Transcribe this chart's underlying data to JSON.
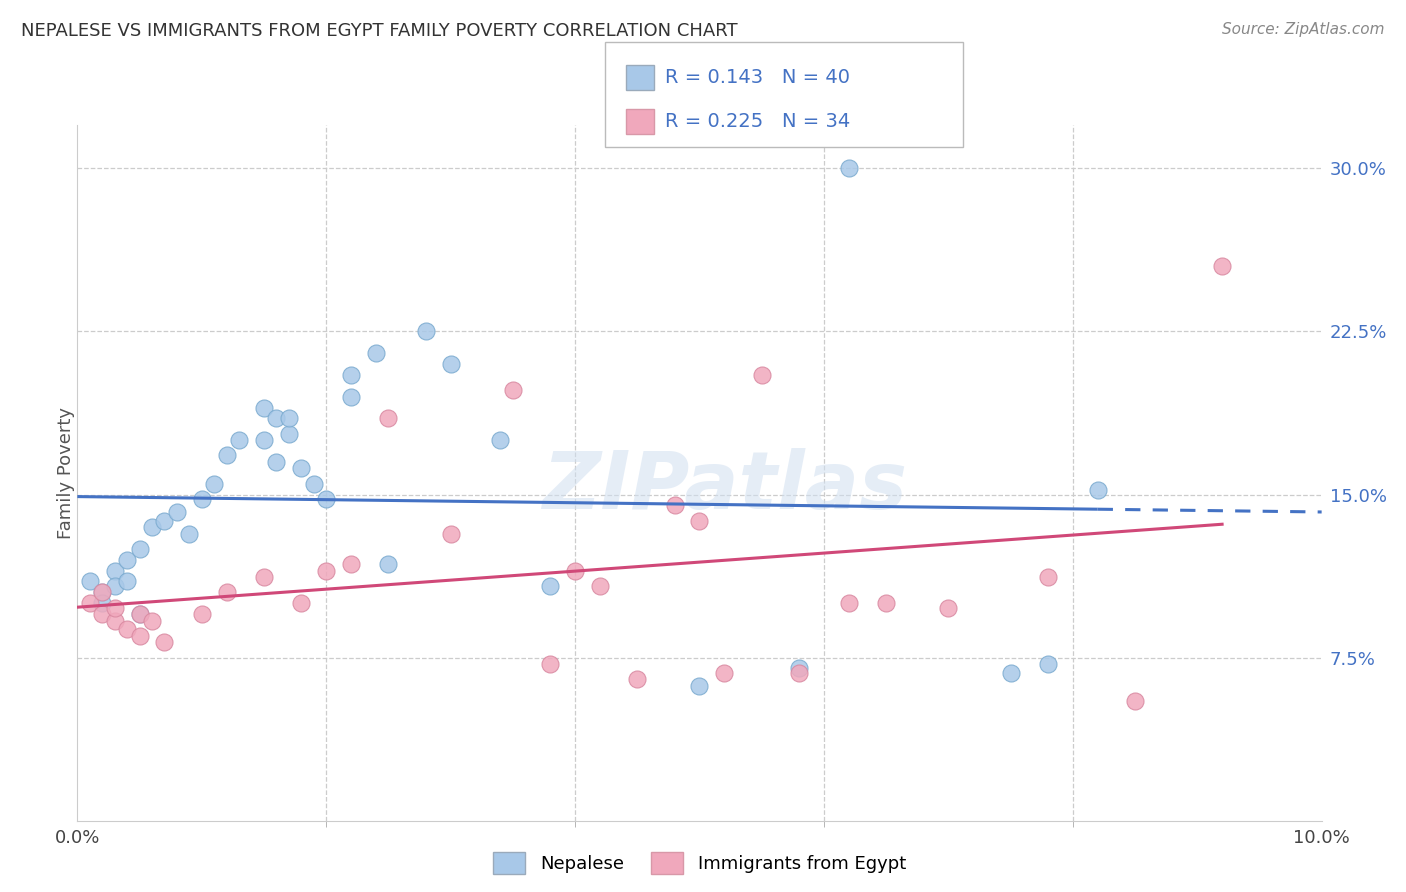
{
  "title": "NEPALESE VS IMMIGRANTS FROM EGYPT FAMILY POVERTY CORRELATION CHART",
  "source": "Source: ZipAtlas.com",
  "ylabel": "Family Poverty",
  "xlim": [
    0.0,
    0.1
  ],
  "ylim": [
    0.0,
    0.32
  ],
  "ytick_vals": [
    0.075,
    0.15,
    0.225,
    0.3
  ],
  "ytick_labels": [
    "7.5%",
    "15.0%",
    "22.5%",
    "30.0%"
  ],
  "nepalese_R": 0.143,
  "nepalese_N": 40,
  "egypt_R": 0.225,
  "egypt_N": 34,
  "nepalese_color": "#A8C8E8",
  "egypt_color": "#F0A8BC",
  "nepalese_line_color": "#4472C4",
  "egypt_line_color": "#D04878",
  "legend_text_color": "#4472C4",
  "nepalese_x": [
    0.001,
    0.002,
    0.002,
    0.003,
    0.003,
    0.004,
    0.004,
    0.005,
    0.005,
    0.006,
    0.007,
    0.008,
    0.009,
    0.01,
    0.011,
    0.012,
    0.013,
    0.015,
    0.016,
    0.017,
    0.018,
    0.019,
    0.02,
    0.022,
    0.024,
    0.028,
    0.03,
    0.034,
    0.038,
    0.015,
    0.016,
    0.017,
    0.022,
    0.025,
    0.05,
    0.058,
    0.062,
    0.075,
    0.078,
    0.082
  ],
  "nepalese_y": [
    0.11,
    0.105,
    0.1,
    0.115,
    0.108,
    0.11,
    0.12,
    0.125,
    0.095,
    0.135,
    0.138,
    0.142,
    0.132,
    0.148,
    0.155,
    0.168,
    0.175,
    0.19,
    0.185,
    0.178,
    0.162,
    0.155,
    0.148,
    0.195,
    0.215,
    0.225,
    0.21,
    0.175,
    0.108,
    0.175,
    0.165,
    0.185,
    0.205,
    0.118,
    0.062,
    0.07,
    0.3,
    0.068,
    0.072,
    0.152
  ],
  "egypt_x": [
    0.001,
    0.002,
    0.002,
    0.003,
    0.003,
    0.004,
    0.005,
    0.005,
    0.006,
    0.007,
    0.01,
    0.012,
    0.015,
    0.018,
    0.02,
    0.022,
    0.025,
    0.03,
    0.035,
    0.038,
    0.04,
    0.042,
    0.045,
    0.048,
    0.05,
    0.052,
    0.055,
    0.058,
    0.062,
    0.065,
    0.07,
    0.078,
    0.085,
    0.092
  ],
  "egypt_y": [
    0.1,
    0.095,
    0.105,
    0.092,
    0.098,
    0.088,
    0.095,
    0.085,
    0.092,
    0.082,
    0.095,
    0.105,
    0.112,
    0.1,
    0.115,
    0.118,
    0.185,
    0.132,
    0.198,
    0.072,
    0.115,
    0.108,
    0.065,
    0.145,
    0.138,
    0.068,
    0.205,
    0.068,
    0.1,
    0.1,
    0.098,
    0.112,
    0.055,
    0.255
  ]
}
